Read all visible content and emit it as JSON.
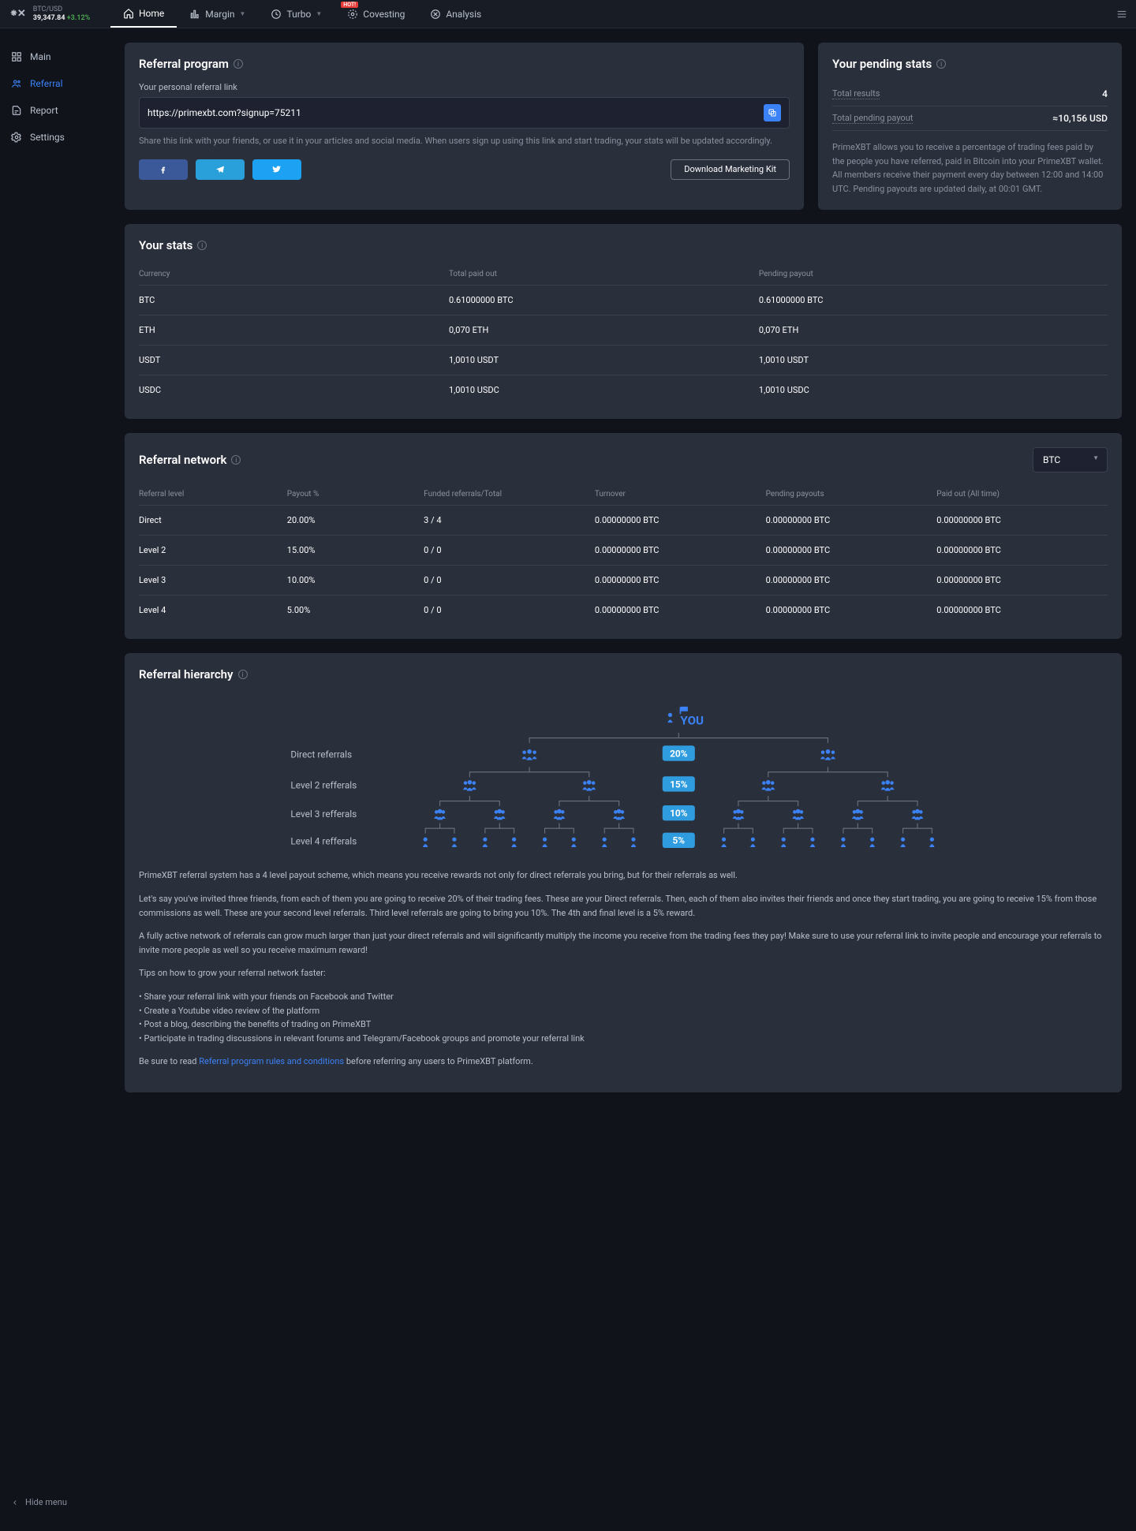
{
  "ticker": {
    "pair": "BTC/USD",
    "price": "39,347.84",
    "change": "+3.12%"
  },
  "topnav": [
    {
      "label": "Home",
      "active": true
    },
    {
      "label": "Margin",
      "chev": true
    },
    {
      "label": "Turbo",
      "chev": true
    },
    {
      "label": "Covesting",
      "hot": true
    },
    {
      "label": "Analysis"
    }
  ],
  "sidebar": [
    {
      "label": "Main"
    },
    {
      "label": "Referral",
      "active": true
    },
    {
      "label": "Report"
    },
    {
      "label": "Settings"
    }
  ],
  "hideMenu": "Hide menu",
  "refProgram": {
    "title": "Referral program",
    "linkLabel": "Your personal referral link",
    "link": "https://primexbt.com?signup=75211",
    "shareText": "Share this link with your friends, or use it in your articles and social media. When users sign up using this link and start trading, your stats will be updated accordingly.",
    "download": "Download Marketing Kit"
  },
  "pending": {
    "title": "Your pending stats",
    "totalLabel": "Total results",
    "totalVal": "4",
    "payoutLabel": "Total pending payout",
    "payoutVal": "≈10,156 USD",
    "desc": "PrimeXBT allows you to receive a percentage of trading fees paid by the people you have referred, paid in Bitcoin into your PrimeXBT wallet. All members receive their payment every day between 12:00 and 14:00 UTC. Pending payouts are updated daily, at 00:01 GMT."
  },
  "yourStats": {
    "title": "Your stats",
    "cols": [
      "Currency",
      "Total paid out",
      "Pending payout"
    ],
    "rows": [
      [
        "BTC",
        "0.61000000 BTC",
        "0.61000000 BTC"
      ],
      [
        "ETH",
        "0,070 ETH",
        "0,070 ETH"
      ],
      [
        "USDT",
        "1,0010 USDT",
        "1,0010 USDT"
      ],
      [
        "USDC",
        "1,0010 USDC",
        "1,0010 USDC"
      ]
    ]
  },
  "network": {
    "title": "Referral network",
    "currency": "BTC",
    "cols": [
      "Referral level",
      "Payout %",
      "Funded referrals/Total",
      "Turnover",
      "Pending payouts",
      "Paid out (All time)"
    ],
    "rows": [
      [
        "Direct",
        "20.00%",
        "3 / 4",
        "0.00000000 BTC",
        "0.00000000 BTC",
        "0.00000000 BTC"
      ],
      [
        "Level 2",
        "15.00%",
        "0 / 0",
        "0.00000000 BTC",
        "0.00000000 BTC",
        "0.00000000 BTC"
      ],
      [
        "Level 3",
        "10.00%",
        "0 / 0",
        "0.00000000 BTC",
        "0.00000000 BTC",
        "0.00000000 BTC"
      ],
      [
        "Level 4",
        "5.00%",
        "0 / 0",
        "0.00000000 BTC",
        "0.00000000 BTC",
        "0.00000000 BTC"
      ]
    ]
  },
  "hierarchy": {
    "title": "Referral hierarchy",
    "you": "YOU",
    "levels": [
      {
        "label": "Direct referrals",
        "pct": "20%"
      },
      {
        "label": "Level 2 refferals",
        "pct": "15%"
      },
      {
        "label": "Level 3 refferals",
        "pct": "10%"
      },
      {
        "label": "Level 4 refferals",
        "pct": "5%"
      }
    ],
    "desc1": "PrimeXBT referral system has a 4 level payout scheme, which means you receive rewards not only for direct referrals you bring, but for their referrals as well.",
    "desc2": "Let's say you've invited three friends, from each of them you are going to receive 20% of their trading fees. These are your Direct referrals. Then, each of them also invites their friends and once they start trading, you are going to receive 15% from those commissions as well. These are your second level referrals. Third level referrals are going to bring you 10%. The 4th and final level is a 5% reward.",
    "desc3": "A fully active network of referrals can grow much larger than just your direct referrals and will significantly multiply the income you receive from the trading fees they pay! Make sure to use your referral link to invite people and encourage your referrals to invite more people as well so you receive maximum reward!",
    "tipsTitle": "Tips on how to grow your referral network faster:",
    "tips": [
      "Share your referral link with your friends on Facebook and Twitter",
      "Create a Youtube video review of the platform",
      "Post a blog, describing the benefits of trading on PrimeXBT",
      "Participate in trading discussions in relevant forums and Telegram/Facebook groups and promote your referral link"
    ],
    "sure1": "Be sure to read ",
    "ruleLink": "Referral program rules and conditions",
    "sure2": " before referring any users to PrimeXBT platform."
  },
  "colors": {
    "accent": "#3b82f6",
    "badge": "#2f9ce0"
  }
}
